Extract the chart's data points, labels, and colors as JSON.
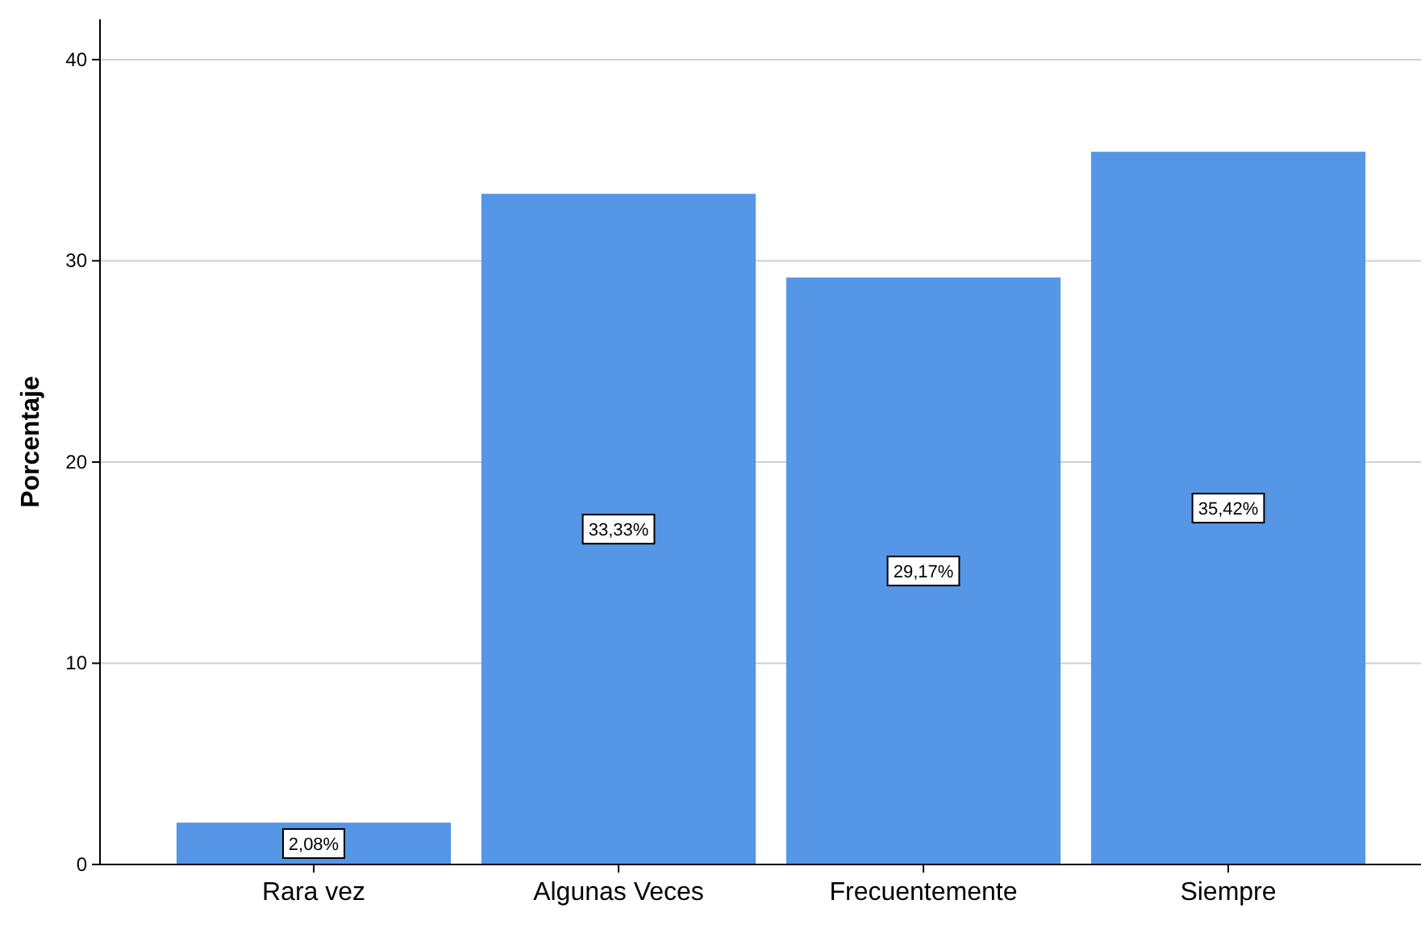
{
  "chart_data": {
    "type": "bar",
    "ylabel": "Porcentaje",
    "categories": [
      "Rara vez",
      "Algunas Veces",
      "Frecuentemente",
      "Siempre"
    ],
    "values": [
      2.08,
      33.33,
      29.17,
      35.42
    ],
    "value_labels": [
      "2,08%",
      "33,33%",
      "29,17%",
      "35,42%"
    ],
    "color": "#5596e6",
    "ylim": [
      0,
      42
    ],
    "yticks": [
      0,
      10,
      20,
      30,
      40
    ],
    "grid": "y"
  }
}
